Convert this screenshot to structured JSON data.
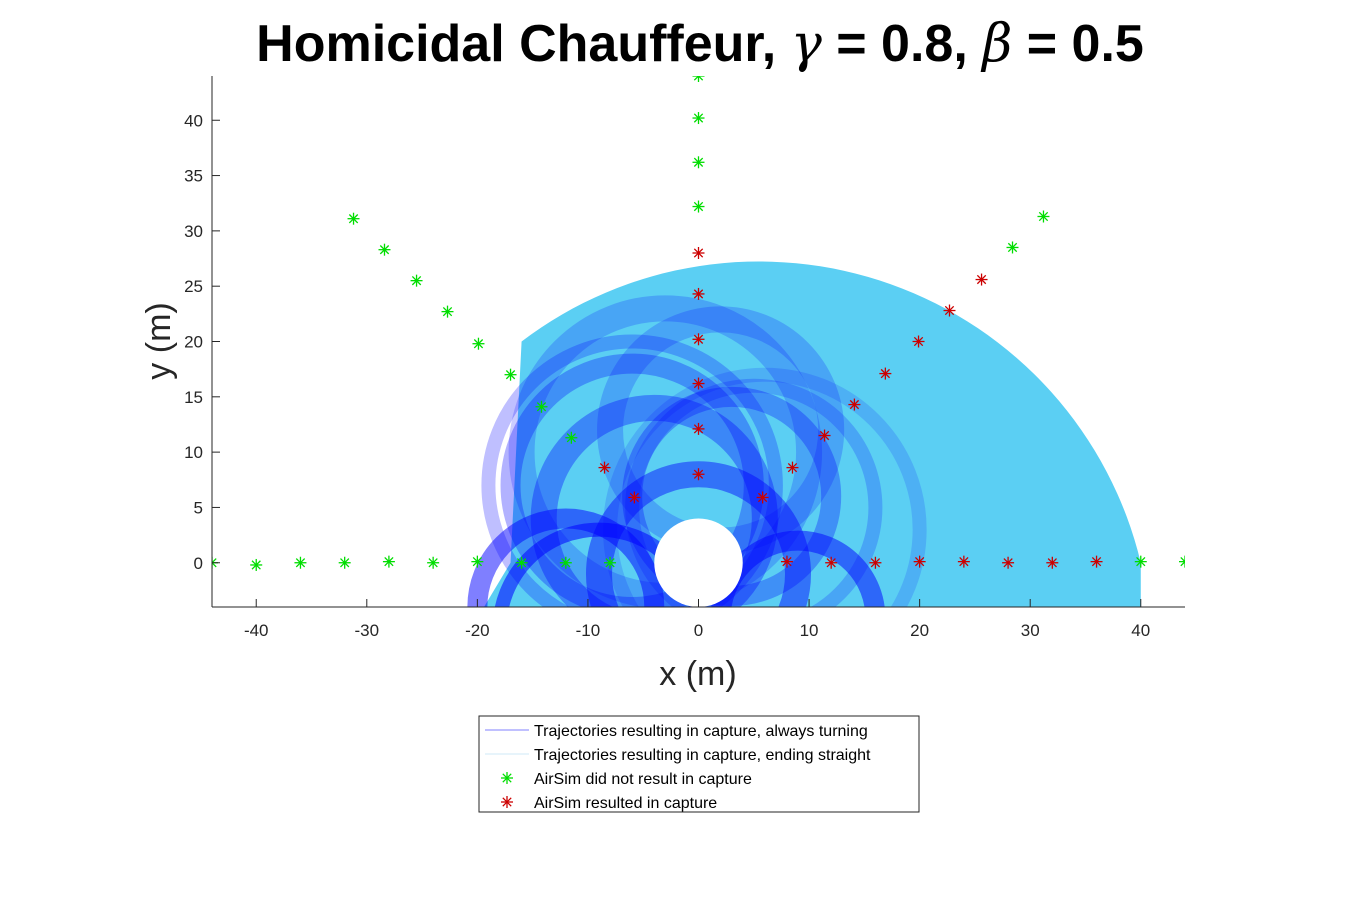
{
  "chart_data": {
    "type": "scatter",
    "title": {
      "prefix": "Homicidal Chauffeur, ",
      "gamma_symbol": "γ",
      "gamma_text": " = 0.8, ",
      "beta_symbol": "β",
      "beta_text": " = 0.5"
    },
    "xlabel": "x (m)",
    "ylabel": "y (m)",
    "xlim": [
      -44,
      44
    ],
    "ylim": [
      -4,
      44
    ],
    "xticks": [
      -40,
      -30,
      -20,
      -10,
      0,
      10,
      20,
      30,
      40
    ],
    "yticks": [
      0,
      5,
      10,
      15,
      20,
      25,
      30,
      35,
      40
    ],
    "grid": false,
    "legend_position": "below",
    "legend": [
      {
        "label": "Trajectories resulting in capture, always turning",
        "marker": "line",
        "color": "#8080ff"
      },
      {
        "label": "Trajectories resulting in capture, ending straight",
        "marker": "line",
        "color": "#cfe9f7"
      },
      {
        "label": "AirSim did not result in capture",
        "marker": "asterisk",
        "color": "#00dd00"
      },
      {
        "label": "AirSim resulted in capture",
        "marker": "asterisk",
        "color": "#cc0000"
      }
    ],
    "regions": {
      "ending_straight": {
        "color": "#5bcff3",
        "center": [
          0,
          0
        ],
        "outer_radius": 40,
        "cap_center": [
          8,
          0
        ],
        "cap_radius": 35.5
      },
      "always_turning": {
        "color": "#0000ff"
      },
      "exclusion_circle_radius": 4
    },
    "series": [
      {
        "name": "AirSim did not result in capture",
        "color": "#00dd00",
        "points": [
          [
            -44,
            0
          ],
          [
            -40,
            -0.2
          ],
          [
            -36,
            0
          ],
          [
            -32,
            0
          ],
          [
            -28,
            0.1
          ],
          [
            -24,
            0
          ],
          [
            -20,
            0.1
          ],
          [
            -16,
            0
          ],
          [
            -12,
            0
          ],
          [
            -8,
            0
          ],
          [
            40,
            0.1
          ],
          [
            44,
            0.1
          ],
          [
            0,
            44
          ],
          [
            0,
            40.2
          ],
          [
            0,
            36.2
          ],
          [
            0,
            32.2
          ],
          [
            -31.2,
            31.1
          ],
          [
            -28.4,
            28.3
          ],
          [
            -25.5,
            25.5
          ],
          [
            -22.7,
            22.7
          ],
          [
            -19.9,
            19.8
          ],
          [
            -17,
            17
          ],
          [
            -14.2,
            14.1
          ],
          [
            -11.5,
            11.3
          ],
          [
            28.4,
            28.5
          ],
          [
            31.2,
            31.3
          ]
        ]
      },
      {
        "name": "AirSim resulted in capture",
        "color": "#cc0000",
        "points": [
          [
            8,
            0.1
          ],
          [
            12,
            0
          ],
          [
            16,
            0
          ],
          [
            20,
            0.1
          ],
          [
            24,
            0.1
          ],
          [
            28,
            0
          ],
          [
            32,
            0
          ],
          [
            36,
            0.1
          ],
          [
            0,
            8
          ],
          [
            0,
            12.1
          ],
          [
            0,
            16.2
          ],
          [
            0,
            20.2
          ],
          [
            0,
            24.3
          ],
          [
            0,
            28
          ],
          [
            -8.5,
            8.6
          ],
          [
            -5.8,
            5.9
          ],
          [
            5.8,
            5.9
          ],
          [
            8.5,
            8.6
          ],
          [
            11.4,
            11.5
          ],
          [
            14.1,
            14.3
          ],
          [
            16.9,
            17.1
          ],
          [
            19.9,
            20
          ],
          [
            22.7,
            22.8
          ],
          [
            25.6,
            25.6
          ]
        ]
      }
    ]
  }
}
